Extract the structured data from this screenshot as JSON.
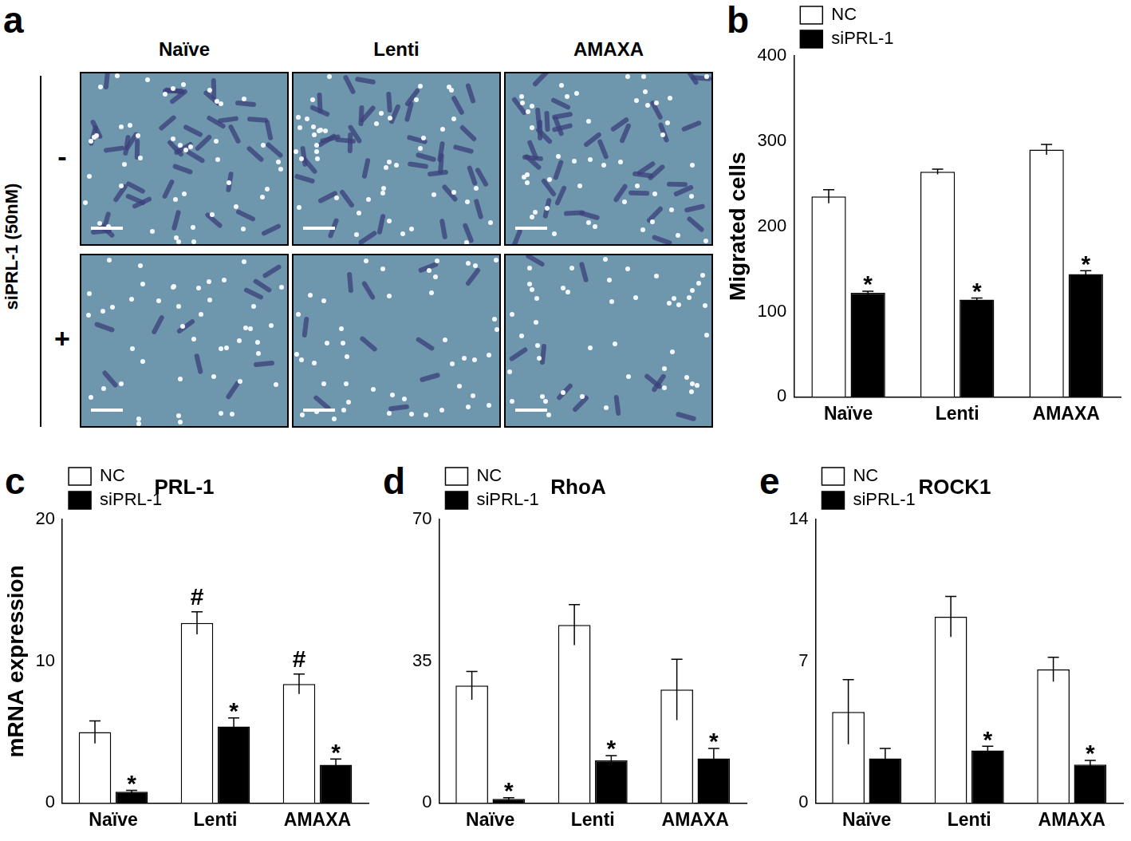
{
  "panel_a": {
    "panel": "a",
    "columns": [
      "Naïve",
      "Lenti",
      "AMAXA"
    ],
    "row_title": "siPRL-1 (50nM)",
    "rows": [
      "-",
      "+"
    ]
  },
  "chart_data": [
    {
      "panel": "b",
      "type": "bar",
      "y_label": "Migrated cells",
      "categories": [
        "Naïve",
        "Lenti",
        "AMAXA"
      ],
      "series": [
        {
          "name": "NC",
          "color": "#ffffff",
          "values": [
            235,
            264,
            290
          ],
          "error": [
            8,
            3,
            6
          ],
          "significance": [
            null,
            null,
            null
          ]
        },
        {
          "name": "siPRL-1",
          "color": "#000000",
          "values": [
            122,
            114,
            144
          ],
          "error": [
            2,
            2,
            4
          ],
          "significance": [
            "*",
            "*",
            "*"
          ]
        }
      ],
      "ylim": [
        0,
        400
      ],
      "yticks": [
        0,
        100,
        200,
        300,
        400
      ],
      "grid": false,
      "legend": "upper left"
    },
    {
      "panel": "c",
      "type": "bar",
      "title": "PRL-1",
      "y_label": "mRNA expression",
      "categories": [
        "Naïve",
        "Lenti",
        "AMAXA"
      ],
      "series": [
        {
          "name": "NC",
          "color": "#ffffff",
          "values": [
            5.0,
            12.7,
            8.4
          ],
          "error": [
            0.8,
            0.8,
            0.7
          ],
          "significance": [
            null,
            "#",
            "#"
          ]
        },
        {
          "name": "siPRL-1",
          "color": "#000000",
          "values": [
            0.8,
            5.4,
            2.7
          ],
          "error": [
            0.1,
            0.6,
            0.4
          ],
          "significance": [
            "*",
            "*",
            "*"
          ]
        }
      ],
      "ylim": [
        0,
        20
      ],
      "yticks": [
        0,
        10,
        20
      ],
      "grid": false,
      "legend": "upper left"
    },
    {
      "panel": "d",
      "type": "bar",
      "title": "RhoA",
      "categories": [
        "Naïve",
        "Lenti",
        "AMAXA"
      ],
      "series": [
        {
          "name": "NC",
          "color": "#ffffff",
          "values": [
            29,
            44,
            28
          ],
          "error": [
            3.5,
            5,
            7.5
          ],
          "significance": [
            null,
            null,
            null
          ]
        },
        {
          "name": "siPRL-1",
          "color": "#000000",
          "values": [
            1,
            10.5,
            11
          ],
          "error": [
            0.3,
            1.2,
            2.5
          ],
          "significance": [
            "*",
            "*",
            "*"
          ]
        }
      ],
      "ylim": [
        0,
        70
      ],
      "yticks": [
        0,
        35,
        70
      ],
      "grid": false,
      "legend": "upper left"
    },
    {
      "panel": "e",
      "type": "bar",
      "title": "ROCK1",
      "categories": [
        "Naïve",
        "Lenti",
        "AMAXA"
      ],
      "series": [
        {
          "name": "NC",
          "color": "#ffffff",
          "values": [
            4.5,
            9.2,
            6.6
          ],
          "error": [
            1.6,
            1.0,
            0.6
          ],
          "significance": [
            null,
            null,
            null
          ]
        },
        {
          "name": "siPRL-1",
          "color": "#000000",
          "values": [
            2.2,
            2.6,
            1.9
          ],
          "error": [
            0.5,
            0.2,
            0.2
          ],
          "significance": [
            null,
            "*",
            "*"
          ]
        }
      ],
      "ylim": [
        0,
        14
      ],
      "yticks": [
        0,
        7,
        14
      ],
      "grid": false,
      "legend": "upper left"
    }
  ]
}
